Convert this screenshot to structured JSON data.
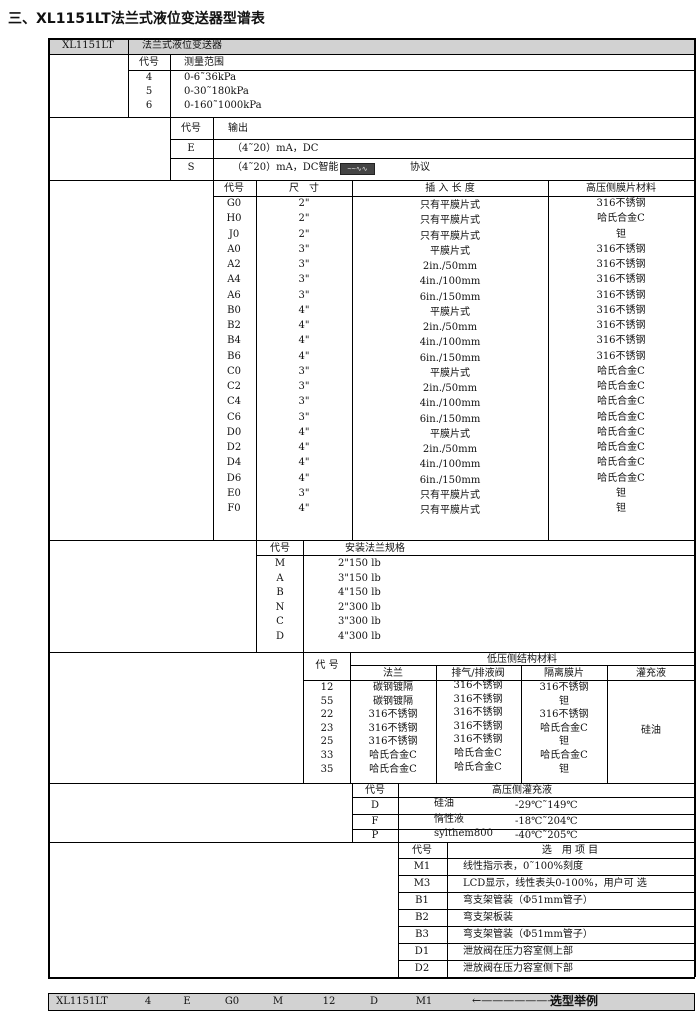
{
  "title": "三、XL1151LT法兰式液位变送器型谱表",
  "header": {
    "model": "XL1151LT",
    "name": "法兰式液位变送器"
  },
  "range": {
    "code_label": "代号",
    "label": "测量范围",
    "rows": [
      {
        "code": "4",
        "value": "0-6˜36kPa"
      },
      {
        "code": "5",
        "value": "0-30˜180kPa"
      },
      {
        "code": "6",
        "value": "0-160˜1000kPa"
      }
    ]
  },
  "output": {
    "code_label": "代号",
    "label": "输出",
    "rows": [
      {
        "code": "E",
        "value": "（4˜20）mA，DC"
      },
      {
        "code": "S",
        "value": "（4˜20）mA，DC智能",
        "suffix": "协议",
        "logo": "HART"
      }
    ]
  },
  "flange": {
    "headers": [
      "代号",
      "尺　寸",
      "插 入 长 度",
      "高压侧膜片材料"
    ],
    "codes": [
      "G0",
      "H0",
      "J0",
      "A0",
      "A2",
      "A4",
      "A6",
      "B0",
      "B2",
      "B4",
      "B6",
      "C0",
      "C2",
      "C4",
      "C6",
      "D0",
      "D2",
      "D4",
      "D6",
      "E0",
      "F0"
    ],
    "sizes": [
      "2\"",
      "2\"",
      "2\"",
      "3\"",
      "3\"",
      "3\"",
      "3\"",
      "4\"",
      "4\"",
      "4\"",
      "4\"",
      "3\"",
      "3\"",
      "3\"",
      "3\"",
      "4\"",
      "4\"",
      "4\"",
      "4\"",
      "3\"",
      "4\""
    ],
    "lengths": [
      "只有平膜片式",
      "只有平膜片式",
      "只有平膜片式",
      "平膜片式",
      "2in./50mm",
      "4in./100mm",
      "6in./150mm",
      "平膜片式",
      "2in./50mm",
      "4in./100mm",
      "6in./150mm",
      "平膜片式",
      "2in./50mm",
      "4in./100mm",
      "6in./150mm",
      "平膜片式",
      "2in./50mm",
      "4in./100mm",
      "6in./150mm",
      "只有平膜片式",
      "只有平膜片式"
    ],
    "materials": [
      "316不锈钢",
      "哈氏合金C",
      "钽",
      "316不锈钢",
      "316不锈钢",
      "316不锈钢",
      "316不锈钢",
      "316不锈钢",
      "316不锈钢",
      "316不锈钢",
      "316不锈钢",
      "哈氏合金C",
      "哈氏合金C",
      "哈氏合金C",
      "哈氏合金C",
      "哈氏合金C",
      "哈氏合金C",
      "哈氏合金C",
      "哈氏合金C",
      "钽",
      "钽"
    ]
  },
  "mounting": {
    "code_label": "代号",
    "label": "安装法兰规格",
    "rows": [
      {
        "code": "M",
        "value": "2\"150 lb"
      },
      {
        "code": "A",
        "value": "3\"150 lb"
      },
      {
        "code": "B",
        "value": "4\"150 lb"
      },
      {
        "code": "N",
        "value": "2\"300 lb"
      },
      {
        "code": "C",
        "value": "3\"300 lb"
      },
      {
        "code": "D",
        "value": "4\"300 lb"
      }
    ]
  },
  "low": {
    "code_label": "代 号",
    "group_label": "低压侧结构材料",
    "headers": [
      "法兰",
      "排气/排液阀",
      "隔离膜片",
      "灌充液"
    ],
    "codes": [
      "12",
      "55",
      "22",
      "23",
      "25",
      "33",
      "35"
    ],
    "flange": [
      "碳钢镀隔",
      "碳钢镀隔",
      "316不锈钢",
      "316不锈钢",
      "316不锈钢",
      "哈氏合金C",
      "哈氏合金C"
    ],
    "valve": [
      "316不锈钢",
      "316不锈钢",
      "316不锈钢",
      "316不锈钢",
      "316不锈钢",
      "哈氏合金C",
      "哈氏合金C"
    ],
    "diaphragm": [
      "316不锈钢",
      "钽",
      "316不锈钢",
      "哈氏合金C",
      "钽",
      "哈氏合金C",
      "钽"
    ],
    "fill": "硅油"
  },
  "hp_fill": {
    "code_label": "代号",
    "label": "高压侧灌充液",
    "rows": [
      {
        "code": "D",
        "fluid": "硅油",
        "temp": "-29℃˜149℃"
      },
      {
        "code": "F",
        "fluid": "惰性液",
        "temp": "-18℃˜204℃"
      },
      {
        "code": "P",
        "fluid": "sylthem800",
        "temp": "-40℃˜205℃"
      }
    ]
  },
  "options": {
    "code_label": "代号",
    "label": "选　用 项 目",
    "rows": [
      {
        "code": "M1",
        "value": "线性指示表，0˜100%刻度"
      },
      {
        "code": "M3",
        "value": "LCD显示，线性表头0-100%，用户可 选"
      },
      {
        "code": "B1",
        "value": "弯支架管装（Φ51mm管子）"
      },
      {
        "code": "B2",
        "value": "弯支架板装"
      },
      {
        "code": "B3",
        "value": "弯支架管装（Φ51mm管子）"
      },
      {
        "code": "D1",
        "value": "泄放阀在压力容室侧上部"
      },
      {
        "code": "D2",
        "value": "泄放阀在压力容室侧下部"
      }
    ]
  },
  "example": {
    "parts": [
      "XL1151LT",
      "4",
      "E",
      "G0",
      "M",
      "12",
      "D",
      "M1"
    ],
    "label": "选型举例",
    "icon": "arrow-left"
  },
  "colors": {
    "header_bg": "#d2d2d2",
    "line": "#000000"
  }
}
